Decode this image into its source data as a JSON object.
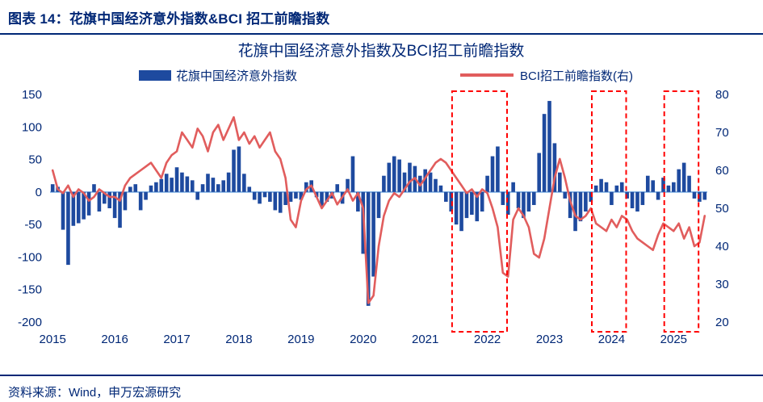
{
  "header": {
    "title": "图表 14：花旗中国经济意外指数&BCI 招工前瞻指数"
  },
  "footer": {
    "source": "资料来源：Wind，申万宏源研究"
  },
  "chart_data": {
    "type": "bar+line",
    "title": "花旗中国经济意外指数及BCI招工前瞻指数",
    "x_start": "2015-01",
    "x_frequency": "monthly",
    "x_tick_labels": [
      "2015",
      "2016",
      "2017",
      "2018",
      "2019",
      "2020",
      "2021",
      "2022",
      "2023",
      "2024",
      "2025"
    ],
    "left_axis": {
      "label": "花旗中国经济意外指数",
      "min": -200,
      "max": 150,
      "ticks": [
        150,
        100,
        50,
        0,
        -50,
        -100,
        -150,
        -200
      ]
    },
    "right_axis": {
      "label": "BCI招工前瞻指数",
      "min": 20,
      "max": 80,
      "ticks": [
        80,
        70,
        60,
        50,
        40,
        30,
        20
      ]
    },
    "grid": "zero-line-only",
    "legend_position": "top",
    "series": [
      {
        "name": "花旗中国经济意外指数",
        "type": "bar",
        "axis": "left",
        "color": "#1e4a9f",
        "values": [
          12,
          8,
          -58,
          -112,
          -52,
          -48,
          -42,
          -36,
          12,
          -30,
          -18,
          -25,
          -40,
          -55,
          -28,
          8,
          12,
          -28,
          -12,
          10,
          15,
          20,
          28,
          22,
          38,
          30,
          24,
          18,
          -12,
          12,
          28,
          22,
          12,
          18,
          30,
          65,
          70,
          28,
          8,
          -12,
          -18,
          -8,
          -15,
          -28,
          -32,
          -20,
          -15,
          -10,
          -12,
          15,
          18,
          -8,
          -22,
          -15,
          -10,
          12,
          -18,
          20,
          55,
          -30,
          -95,
          -175,
          -130,
          -40,
          25,
          45,
          55,
          50,
          30,
          45,
          40,
          25,
          35,
          30,
          20,
          10,
          -15,
          -30,
          -50,
          -60,
          -40,
          -35,
          -45,
          -30,
          25,
          55,
          70,
          -20,
          -35,
          15,
          -25,
          -40,
          -30,
          -20,
          60,
          120,
          140,
          75,
          30,
          -10,
          -40,
          -60,
          -45,
          -30,
          -15,
          10,
          20,
          15,
          -20,
          10,
          15,
          -10,
          -25,
          -30,
          -20,
          25,
          18,
          -12,
          22,
          10,
          15,
          35,
          45,
          25,
          -10,
          -15,
          -12
        ]
      },
      {
        "name": "BCI招工前瞻指数(右)",
        "type": "line",
        "axis": "right",
        "color": "#e15d5d",
        "values": [
          60,
          55,
          54,
          56,
          53,
          55,
          54,
          52,
          53,
          55,
          54,
          53,
          53,
          52,
          56,
          58,
          59,
          60,
          61,
          62,
          60,
          58,
          62,
          64,
          65,
          70,
          68,
          66,
          71,
          69,
          65,
          70,
          72,
          68,
          71,
          74,
          68,
          70,
          67,
          69,
          66,
          68,
          70,
          65,
          63,
          58,
          47,
          45,
          52,
          55,
          56,
          53,
          50,
          52,
          54,
          51,
          53,
          55,
          52,
          54,
          50,
          25,
          27,
          40,
          48,
          52,
          54,
          53,
          55,
          57,
          58,
          56,
          58,
          60,
          62,
          63,
          62,
          60,
          58,
          56,
          54,
          55,
          53,
          55,
          54,
          50,
          45,
          33,
          32,
          47,
          50,
          48,
          45,
          38,
          37,
          42,
          50,
          58,
          63,
          58,
          52,
          48,
          47,
          48,
          50,
          46,
          45,
          44,
          47,
          45,
          48,
          47,
          44,
          42,
          41,
          40,
          39,
          43,
          46,
          45,
          44,
          46,
          42,
          45,
          40,
          41,
          48
        ]
      }
    ],
    "highlight_boxes": [
      {
        "start_index": 78,
        "end_index": 87
      },
      {
        "start_index": 105,
        "end_index": 110
      },
      {
        "start_index": 119,
        "end_index": 124
      }
    ],
    "colors": {
      "text": "#002776",
      "zero_line": "#8fbbe8",
      "highlight": "#ff0000",
      "background": "#ffffff"
    }
  }
}
